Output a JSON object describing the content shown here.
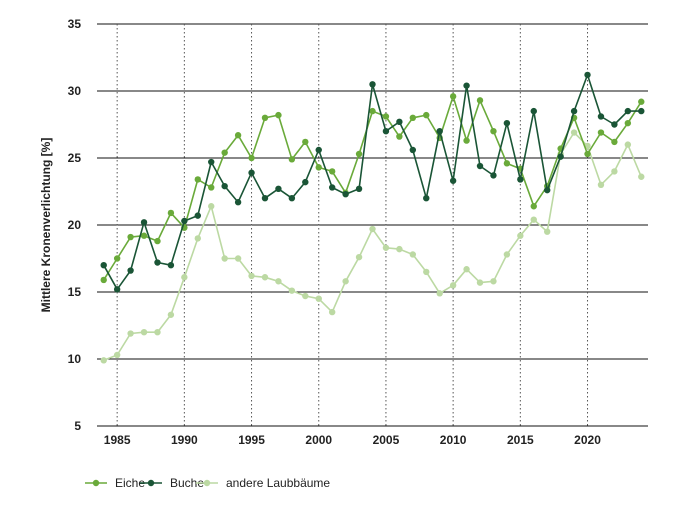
{
  "chart_data": {
    "type": "line",
    "ylabel": "Mittlere Kronenverlichtung [%]",
    "xlabel": "",
    "xlim": [
      1983.5,
      2024.5
    ],
    "ylim": [
      5,
      35
    ],
    "xticks": [
      1985,
      1990,
      1995,
      2000,
      2005,
      2010,
      2015,
      2020
    ],
    "yticks": [
      5,
      10,
      15,
      20,
      25,
      30,
      35
    ],
    "grid": {
      "horizontal": "solid",
      "vertical": "dotted"
    },
    "legend_position": "bottom-left",
    "x": [
      1984,
      1985,
      1986,
      1987,
      1988,
      1989,
      1990,
      1991,
      1992,
      1993,
      1994,
      1995,
      1996,
      1997,
      1998,
      1999,
      2000,
      2001,
      2002,
      2003,
      2004,
      2005,
      2006,
      2007,
      2008,
      2009,
      2010,
      2011,
      2012,
      2013,
      2014,
      2015,
      2016,
      2017,
      2018,
      2019,
      2020,
      2021,
      2022,
      2023,
      2024
    ],
    "series": [
      {
        "name": "Eiche",
        "color": "#6aaa3a",
        "values": [
          15.9,
          17.5,
          19.1,
          19.2,
          18.8,
          20.9,
          19.8,
          23.4,
          22.8,
          25.4,
          26.7,
          25.0,
          28.0,
          28.2,
          24.9,
          26.2,
          24.3,
          24.0,
          22.4,
          25.3,
          28.5,
          28.1,
          26.6,
          28.0,
          28.2,
          26.5,
          29.6,
          26.3,
          29.3,
          27.0,
          24.6,
          24.2,
          21.4,
          22.9,
          25.7,
          28.0,
          25.3,
          26.9,
          26.2,
          27.6,
          29.2
        ]
      },
      {
        "name": "Buche",
        "color": "#1a5536",
        "values": [
          17.0,
          15.2,
          16.6,
          20.2,
          17.2,
          17.0,
          20.3,
          20.7,
          24.7,
          22.9,
          21.7,
          23.9,
          22.0,
          22.7,
          22.0,
          23.2,
          25.6,
          22.8,
          22.3,
          22.7,
          30.5,
          27.0,
          27.7,
          25.6,
          22.0,
          27.0,
          23.3,
          30.4,
          24.4,
          23.7,
          27.6,
          23.4,
          28.5,
          22.6,
          25.1,
          28.5,
          31.2,
          28.1,
          27.5,
          28.5,
          28.5
        ]
      },
      {
        "name": "andere Laubbäume",
        "color": "#bcd9a3",
        "values": [
          9.9,
          10.3,
          11.9,
          12.0,
          12.0,
          13.3,
          16.1,
          19.0,
          21.4,
          17.5,
          17.5,
          16.2,
          16.1,
          15.8,
          15.1,
          14.7,
          14.5,
          13.5,
          15.8,
          17.6,
          19.7,
          18.3,
          18.2,
          17.8,
          16.5,
          14.9,
          15.5,
          16.7,
          15.7,
          15.8,
          17.8,
          19.2,
          20.4,
          19.5,
          25.3,
          26.9,
          25.9,
          23.0,
          24.0,
          26.0,
          23.6
        ]
      }
    ]
  }
}
